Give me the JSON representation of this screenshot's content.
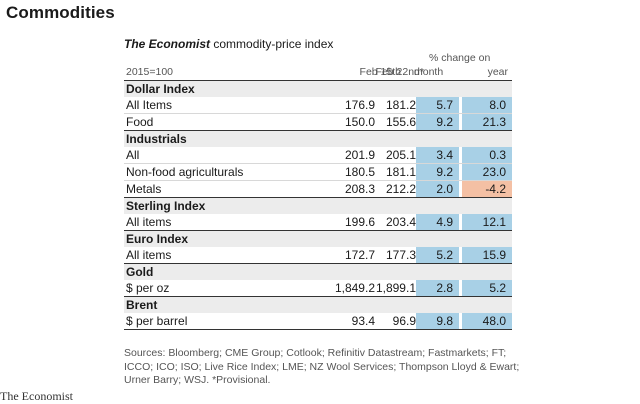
{
  "page_title": "Commodities",
  "table": {
    "title_italic": "The Economist",
    "title_rest": " commodity-price index",
    "base_label": "2015=100",
    "col1": "Feb 15th",
    "col2": "Feb 22nd*",
    "pct_change": "% change on",
    "month": "month",
    "year": "year",
    "sections": [
      {
        "name": "Dollar Index",
        "rows": [
          {
            "label": "All Items",
            "v1": "176.9",
            "v2": "181.2",
            "month": "5.7",
            "year": "8.0",
            "year_negative": false
          },
          {
            "label": "Food",
            "v1": "150.0",
            "v2": "155.6",
            "month": "9.2",
            "year": "21.3",
            "year_negative": false
          }
        ]
      },
      {
        "name": "Industrials",
        "rows": [
          {
            "label": "All",
            "v1": "201.9",
            "v2": "205.1",
            "month": "3.4",
            "year": "0.3",
            "year_negative": false
          },
          {
            "label": "Non-food agriculturals",
            "v1": "180.5",
            "v2": "181.1",
            "month": "9.2",
            "year": "23.0",
            "year_negative": false
          },
          {
            "label": "Metals",
            "v1": "208.3",
            "v2": "212.2",
            "month": "2.0",
            "year": "-4.2",
            "year_negative": true
          }
        ]
      },
      {
        "name": "Sterling Index",
        "rows": [
          {
            "label": "All items",
            "v1": "199.6",
            "v2": "203.4",
            "month": "4.9",
            "year": "12.1",
            "year_negative": false
          }
        ]
      },
      {
        "name": "Euro Index",
        "rows": [
          {
            "label": "All items",
            "v1": "172.7",
            "v2": "177.3",
            "month": "5.2",
            "year": "15.9",
            "year_negative": false
          }
        ]
      },
      {
        "name": "Gold",
        "rows": [
          {
            "label": "$ per oz",
            "v1": "1,849.2",
            "v2": "1,899.1",
            "month": "2.8",
            "year": "5.2",
            "year_negative": false
          }
        ]
      },
      {
        "name": "Brent",
        "rows": [
          {
            "label": "$ per barrel",
            "v1": "93.4",
            "v2": "96.9",
            "month": "9.8",
            "year": "48.0",
            "year_negative": false
          }
        ]
      }
    ]
  },
  "sources": "Sources: Bloomberg; CME Group; Cotlook; Refinitiv Datastream; Fastmarkets; FT; ICCO; ICO; ISO; Live Rice Index; LME; NZ Wool Services; Thompson Lloyd & Ewart; Urner Barry; WSJ. *Provisional.",
  "brand": "The Economist",
  "colors": {
    "cell_positive": "#a8d0e6",
    "cell_negative": "#f4c0a4",
    "section_bg": "#ececec"
  }
}
